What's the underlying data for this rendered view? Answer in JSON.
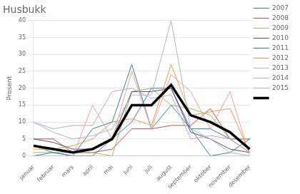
{
  "chart_data": {
    "type": "line",
    "title": "Husbukk",
    "ylabel": "Prosent",
    "categories": [
      "januar",
      "februar",
      "mars",
      "april",
      "mai",
      "juni",
      "juli",
      "august",
      "september",
      "oktober",
      "november",
      "desember"
    ],
    "series": [
      {
        "name": "2007",
        "color": "#4472C4",
        "values": [
          0,
          1,
          0,
          0,
          5,
          10,
          20,
          20,
          8,
          8,
          5,
          5
        ]
      },
      {
        "name": "2008",
        "color": "#C0504D",
        "values": [
          5,
          5,
          1,
          1,
          2,
          8,
          8,
          9,
          9,
          14,
          5,
          1
        ]
      },
      {
        "name": "2009",
        "color": "#9BBB59",
        "values": [
          1,
          1,
          1,
          1,
          0,
          19,
          20,
          15,
          14,
          12,
          5,
          5
        ]
      },
      {
        "name": "2010",
        "color": "#604A7B",
        "values": [
          5,
          4,
          2,
          2,
          5,
          19,
          19,
          20,
          7,
          5,
          2,
          1
        ]
      },
      {
        "name": "2011",
        "color": "#31849B",
        "values": [
          3,
          1,
          0,
          8,
          10,
          27,
          8,
          15,
          8,
          0,
          1,
          5
        ]
      },
      {
        "name": "2012",
        "color": "#F79646",
        "values": [
          2,
          2,
          3,
          5,
          10,
          11,
          9,
          27,
          12,
          13,
          14,
          1
        ]
      },
      {
        "name": "2013",
        "color": "#A5B8D3",
        "values": [
          10,
          7,
          5,
          6,
          8,
          18,
          18,
          40,
          8,
          5,
          1,
          0
        ]
      },
      {
        "name": "2014",
        "color": "#F2A093",
        "values": [
          0,
          0,
          0,
          15,
          5,
          25,
          8,
          24,
          19,
          8,
          19,
          0
        ]
      },
      {
        "name": "2015",
        "color": "#C4A5C8",
        "values": [
          10,
          8,
          9,
          9,
          19,
          20,
          17,
          18,
          5,
          6,
          5,
          1
        ]
      },
      {
        "color": "#000000",
        "values": [
          3,
          2,
          1,
          2,
          5,
          15,
          15,
          21,
          12,
          10,
          7,
          2
        ]
      }
    ],
    "ylim": [
      0,
      40
    ],
    "yticks": [
      0,
      5,
      10,
      15,
      20,
      25,
      30,
      35,
      40
    ],
    "grid": "y",
    "legend": "right"
  }
}
